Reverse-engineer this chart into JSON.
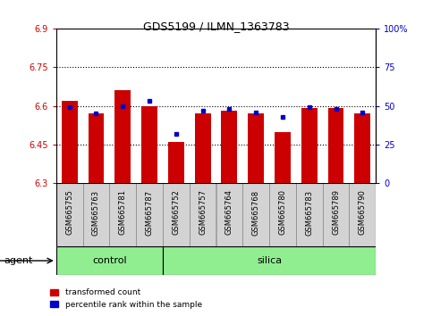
{
  "title": "GDS5199 / ILMN_1363783",
  "samples": [
    "GSM665755",
    "GSM665763",
    "GSM665781",
    "GSM665787",
    "GSM665752",
    "GSM665757",
    "GSM665764",
    "GSM665768",
    "GSM665780",
    "GSM665783",
    "GSM665789",
    "GSM665790"
  ],
  "transformed_count": [
    6.62,
    6.57,
    6.66,
    6.6,
    6.46,
    6.57,
    6.58,
    6.57,
    6.5,
    6.59,
    6.59,
    6.57
  ],
  "percentile_rank": [
    49,
    45,
    50,
    53,
    32,
    47,
    48,
    46,
    43,
    49,
    48,
    46
  ],
  "ymin": 6.3,
  "ymax": 6.9,
  "yticks": [
    6.3,
    6.45,
    6.6,
    6.75,
    6.9
  ],
  "ytick_labels": [
    "6.3",
    "6.45",
    "6.6",
    "6.75",
    "6.9"
  ],
  "y2min": 0,
  "y2max": 100,
  "y2ticks": [
    0,
    25,
    50,
    75,
    100
  ],
  "y2tick_labels": [
    "0",
    "25",
    "50",
    "75",
    "100%"
  ],
  "bar_color": "#cc0000",
  "dot_color": "#0000cc",
  "bar_bottom": 6.3,
  "grid_lines": [
    6.45,
    6.6,
    6.75
  ],
  "n_control": 4,
  "control_color": "#90ee90",
  "silica_color": "#90ee90",
  "agent_label": "agent",
  "control_label": "control",
  "silica_label": "silica",
  "legend_red": "transformed count",
  "legend_blue": "percentile rank within the sample",
  "bg_color": "#ffffff",
  "plot_bg_color": "#ffffff",
  "tick_label_color_left": "#cc0000",
  "tick_label_color_right": "#0000cc",
  "bar_width": 0.6,
  "sample_box_color": "#d3d3d3",
  "sample_box_edge": "#888888"
}
